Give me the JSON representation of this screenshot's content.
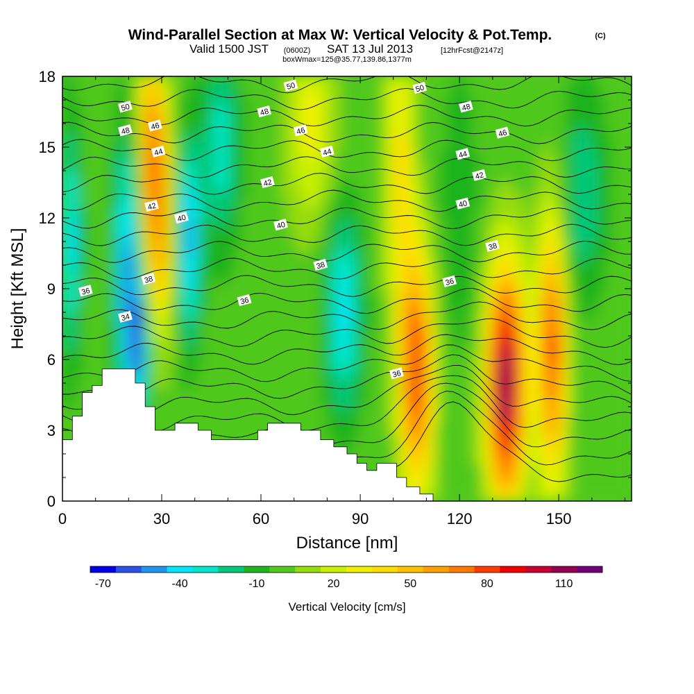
{
  "chart_data": {
    "type": "heatmap",
    "title": "Wind-Parallel Section at Max W: Vertical Velocity & Pot.Temp.",
    "title_mark": "(C)",
    "subtitle_parts": [
      "Valid 1500 JST",
      "(0600Z)",
      "SAT 13 Jul 2013",
      "[12hrFcst@2147z]"
    ],
    "subtitle2": "boxWmax=125@35.77,139.86,1377m",
    "xlabel": "Distance [nm]",
    "ylabel": "Height [Kft MSL]",
    "xlim": [
      0,
      172
    ],
    "ylim": [
      0,
      18
    ],
    "x_ticks": [
      0,
      30,
      60,
      90,
      120,
      150
    ],
    "x_tick_labels": [
      "0",
      "30",
      "60",
      "90",
      "120",
      "150"
    ],
    "y_ticks": [
      0,
      3,
      6,
      9,
      12,
      15,
      18
    ],
    "y_tick_labels": [
      "0",
      "3",
      "6",
      "9",
      "12",
      "15",
      "18"
    ],
    "colorbar": {
      "title": "Vertical Velocity [cm/s]",
      "levels": [
        -70,
        -60,
        -50,
        -40,
        -30,
        -20,
        -10,
        0,
        10,
        20,
        30,
        40,
        50,
        60,
        70,
        80,
        90,
        100,
        110,
        120,
        130
      ],
      "colors": [
        "#0000e6",
        "#2a50e6",
        "#1e96f0",
        "#00e6fa",
        "#00e6c8",
        "#00c878",
        "#1eb41e",
        "#50c81e",
        "#96dc0a",
        "#c8f000",
        "#f0f000",
        "#ffdc00",
        "#ffc000",
        "#ffa000",
        "#ff7800",
        "#ff3c00",
        "#f00000",
        "#c80032",
        "#960050",
        "#6e0078"
      ],
      "tick_values": [
        -70,
        -40,
        -10,
        20,
        50,
        80,
        110
      ],
      "tick_labels": [
        "-70",
        "-40",
        "-10",
        "20",
        "50",
        "80",
        "110"
      ]
    },
    "velocity_features": [
      {
        "x": 2,
        "y": 11,
        "sx": 2.5,
        "sy": 3.5,
        "value": -35
      },
      {
        "x": 20,
        "y": 10,
        "sx": 3,
        "sy": 4,
        "value": -45
      },
      {
        "x": 23,
        "y": 6.5,
        "sx": 2,
        "sy": 1.8,
        "value": -40
      },
      {
        "x": 27,
        "y": 15,
        "sx": 3,
        "sy": 3.5,
        "value": 70
      },
      {
        "x": 30,
        "y": 11,
        "sx": 3,
        "sy": 3,
        "value": 45
      },
      {
        "x": 38,
        "y": 11,
        "sx": 2.5,
        "sy": 3,
        "value": -45
      },
      {
        "x": 48,
        "y": 15,
        "sx": 4,
        "sy": 3,
        "value": -25
      },
      {
        "x": 75,
        "y": 16,
        "sx": 5,
        "sy": 3,
        "value": 35
      },
      {
        "x": 85,
        "y": 8,
        "sx": 4,
        "sy": 3,
        "value": -35
      },
      {
        "x": 102,
        "y": 14,
        "sx": 3,
        "sy": 4,
        "value": 45
      },
      {
        "x": 107,
        "y": 5.5,
        "sx": 3.5,
        "sy": 3.5,
        "value": 90
      },
      {
        "x": 120,
        "y": 12,
        "sx": 5,
        "sy": 5,
        "value": -5
      },
      {
        "x": 134,
        "y": 5,
        "sx": 4,
        "sy": 3.5,
        "value": 120
      },
      {
        "x": 148,
        "y": 6.5,
        "sx": 3,
        "sy": 4,
        "value": 85
      },
      {
        "x": 157,
        "y": 13,
        "sx": 5,
        "sy": 3,
        "value": -20
      }
    ],
    "terrain": {
      "x": [
        0,
        3,
        3,
        6,
        6,
        9,
        9,
        12,
        12,
        22,
        22,
        25,
        25,
        28,
        28,
        34,
        34,
        41,
        41,
        45,
        45,
        59,
        59,
        62,
        62,
        72,
        72,
        78,
        78,
        82,
        82,
        86,
        86,
        89,
        89,
        92,
        92,
        95,
        95,
        101,
        101,
        104,
        104,
        108,
        108,
        112
      ],
      "y": [
        2.6,
        2.6,
        3.6,
        3.6,
        4.6,
        4.6,
        4.9,
        4.9,
        5.6,
        5.6,
        5.0,
        5.0,
        4.0,
        4.0,
        3.0,
        3.0,
        3.3,
        3.3,
        3.0,
        3.0,
        2.6,
        2.6,
        3.0,
        3.0,
        3.3,
        3.3,
        3.0,
        3.0,
        2.6,
        2.6,
        2.3,
        2.3,
        2.0,
        2.0,
        1.6,
        1.6,
        1.3,
        1.3,
        1.6,
        1.6,
        1.0,
        1.0,
        0.6,
        0.6,
        0.3,
        0.3
      ]
    },
    "contour_labels": [
      {
        "x": 19,
        "y": 16.7,
        "text": "50"
      },
      {
        "x": 19,
        "y": 15.7,
        "text": "48"
      },
      {
        "x": 28,
        "y": 15.9,
        "text": "46"
      },
      {
        "x": 29,
        "y": 14.8,
        "text": "44"
      },
      {
        "x": 27,
        "y": 12.5,
        "text": "42"
      },
      {
        "x": 36,
        "y": 12.0,
        "text": "40"
      },
      {
        "x": 26,
        "y": 9.4,
        "text": "38"
      },
      {
        "x": 7,
        "y": 8.9,
        "text": "36"
      },
      {
        "x": 19,
        "y": 7.8,
        "text": "34"
      },
      {
        "x": 69,
        "y": 17.6,
        "text": "50"
      },
      {
        "x": 61,
        "y": 16.5,
        "text": "48"
      },
      {
        "x": 72,
        "y": 15.7,
        "text": "46"
      },
      {
        "x": 80,
        "y": 14.8,
        "text": "44"
      },
      {
        "x": 62,
        "y": 13.5,
        "text": "42"
      },
      {
        "x": 66,
        "y": 11.7,
        "text": "40"
      },
      {
        "x": 78,
        "y": 10.0,
        "text": "38"
      },
      {
        "x": 55,
        "y": 8.5,
        "text": "36"
      },
      {
        "x": 108,
        "y": 17.5,
        "text": "50"
      },
      {
        "x": 122,
        "y": 16.7,
        "text": "48"
      },
      {
        "x": 133,
        "y": 15.6,
        "text": "46"
      },
      {
        "x": 121,
        "y": 14.7,
        "text": "44"
      },
      {
        "x": 126,
        "y": 13.8,
        "text": "42"
      },
      {
        "x": 121,
        "y": 12.6,
        "text": "40"
      },
      {
        "x": 130,
        "y": 10.8,
        "text": "38"
      },
      {
        "x": 117,
        "y": 9.3,
        "text": "36"
      },
      {
        "x": 101,
        "y": 5.4,
        "text": "36"
      }
    ]
  }
}
